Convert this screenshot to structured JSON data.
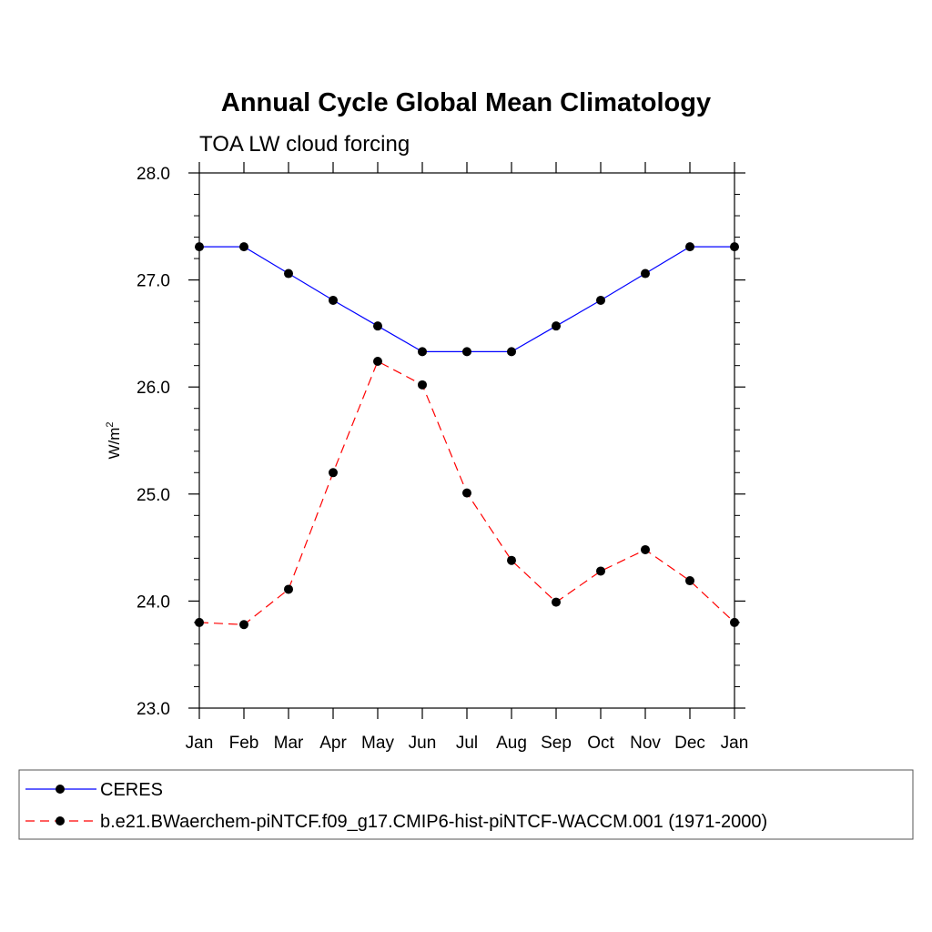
{
  "chart_data": {
    "type": "line",
    "title": "Annual Cycle Global Mean Climatology",
    "subtitle": "TOA LW cloud forcing",
    "ylabel": "W/m",
    "ylabel_superscript": "2",
    "categories": [
      "Jan",
      "Feb",
      "Mar",
      "Apr",
      "May",
      "Jun",
      "Jul",
      "Aug",
      "Sep",
      "Oct",
      "Nov",
      "Dec",
      "Jan"
    ],
    "ylim": [
      23.0,
      28.0
    ],
    "yticks": [
      "23.0",
      "24.0",
      "25.0",
      "26.0",
      "27.0",
      "28.0"
    ],
    "ytick_values": [
      23,
      24,
      25,
      26,
      27,
      28
    ],
    "grid": false,
    "series": [
      {
        "name": "CERES",
        "color": "#0000ff",
        "dash": "solid",
        "values": [
          27.31,
          27.31,
          27.06,
          26.81,
          26.57,
          26.33,
          26.33,
          26.33,
          26.57,
          26.81,
          27.06,
          27.31,
          27.31
        ]
      },
      {
        "name": "b.e21.BWaerchem-piNTCF.f09_g17.CMIP6-hist-piNTCF-WACCM.001 (1971-2000)",
        "color": "#ff0000",
        "dash": "dashed",
        "values": [
          23.8,
          23.78,
          24.11,
          25.2,
          26.24,
          26.02,
          25.01,
          24.38,
          23.99,
          24.28,
          24.48,
          24.19,
          23.8
        ]
      }
    ],
    "legend_position": "bottom"
  }
}
